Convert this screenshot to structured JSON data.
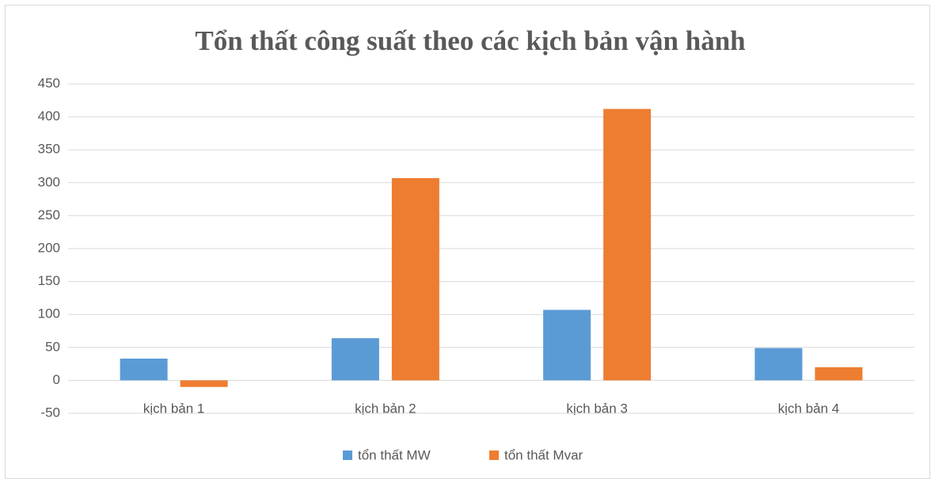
{
  "chart_data": {
    "type": "bar",
    "title": "Tổn thất công suất theo các kịch bản vận hành",
    "categories": [
      "kịch bản 1",
      "kịch bản 2",
      "kịch bản 3",
      "kịch bản 4"
    ],
    "series": [
      {
        "name": "tổn thất MW",
        "color": "#5b9bd5",
        "values": [
          33,
          64,
          107,
          49
        ]
      },
      {
        "name": "tổn thất Mvar",
        "color": "#ed7d31",
        "values": [
          -10,
          307,
          412,
          20
        ]
      }
    ],
    "ylim": [
      -50,
      450
    ],
    "yticks": [
      -50,
      0,
      50,
      100,
      150,
      200,
      250,
      300,
      350,
      400,
      450
    ],
    "grid": true,
    "legend": "bottom"
  }
}
